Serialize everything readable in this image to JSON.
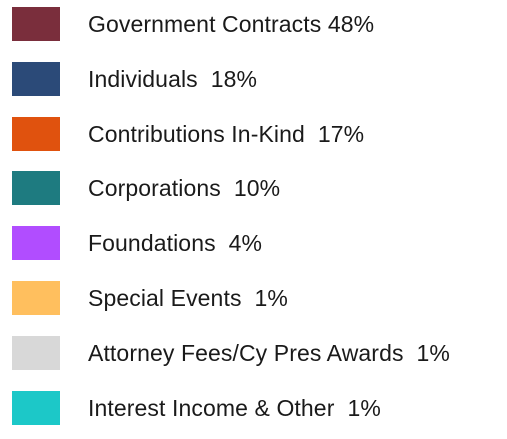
{
  "chart_data": {
    "type": "pie",
    "legend": "left",
    "slices": [
      {
        "label": "Government Contracts 48%",
        "name": "Government Contracts",
        "value": 48,
        "color": "#7a2e3c"
      },
      {
        "label": "Individuals  18%",
        "name": "Individuals",
        "value": 18,
        "color": "#2b4a78"
      },
      {
        "label": "Contributions In-Kind  17%",
        "name": "Contributions In-Kind",
        "value": 17,
        "color": "#e0520e"
      },
      {
        "label": "Corporations  10%",
        "name": "Corporations",
        "value": 10,
        "color": "#1e7b80"
      },
      {
        "label": "Foundations  4%",
        "name": "Foundations",
        "value": 4,
        "color": "#b14dff"
      },
      {
        "label": "Special Events  1%",
        "name": "Special Events",
        "value": 1,
        "color": "#ffbf5e"
      },
      {
        "label": "Attorney Fees/Cy Pres Awards  1%",
        "name": "Attorney Fees/Cy Pres Awards",
        "value": 1,
        "color": "#d8d8d8"
      },
      {
        "label": "Interest Income & Other  1%",
        "name": "Interest Income & Other",
        "value": 1,
        "color": "#1cc8c8"
      }
    ]
  }
}
